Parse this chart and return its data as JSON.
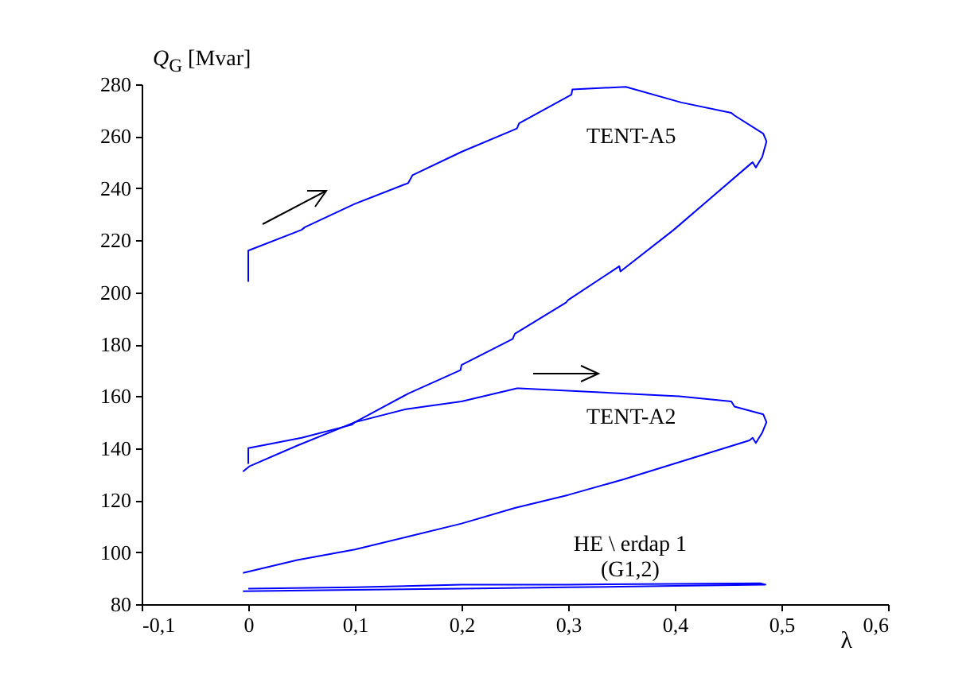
{
  "chart_data": {
    "type": "line",
    "ylabel": "Q$_{G}$ [Mvar]",
    "xlabel": "λ",
    "xlim": [
      -0.1,
      0.6
    ],
    "xticks": [
      {
        "value": -0.1,
        "label": "-0,1"
      },
      0,
      {
        "value": 0.1,
        "label": "0,1"
      },
      {
        "value": 0.2,
        "label": "0,2"
      },
      {
        "value": 0.3,
        "label": "0,3"
      },
      {
        "value": 0.4,
        "label": "0,4"
      },
      {
        "value": 0.5,
        "label": "0,5"
      },
      {
        "value": 0.6,
        "label": "0,6"
      }
    ],
    "ylim": [
      80,
      280
    ],
    "yticks": [
      80,
      100,
      120,
      140,
      160,
      180,
      200,
      220,
      240,
      260,
      280
    ],
    "grid": false,
    "legend": false,
    "series": [
      {
        "name": "TENT-A5",
        "color": "#0000ff",
        "x": [
          0,
          0,
          0.05,
          0.053,
          0.1,
          0.15,
          0.154,
          0.2,
          0.252,
          0.254,
          0.303,
          0.304,
          0.354,
          0.406,
          0.453,
          0.456,
          0.483,
          0.486,
          0.482,
          0.476,
          0.473,
          0.47,
          0.399,
          0.349,
          0.348,
          0.3,
          0.298,
          0.25,
          0.248,
          0.2,
          0.199,
          0.15,
          0.1,
          0.046,
          0.001,
          -0.005
        ],
        "values": [
          204,
          216,
          224,
          225,
          234,
          242,
          245,
          254,
          263,
          265,
          276,
          278,
          279,
          273,
          269,
          268,
          261,
          258,
          252,
          248,
          250,
          249,
          224,
          208,
          210,
          197,
          196,
          184,
          182,
          172,
          170,
          161,
          150,
          141,
          133,
          131
        ]
      },
      {
        "name": "TENT-A2",
        "color": "#0000ff",
        "x": [
          0,
          0,
          0.05,
          0.097,
          0.1,
          0.148,
          0.2,
          0.252,
          0.254,
          0.404,
          0.453,
          0.456,
          0.483,
          0.486,
          0.482,
          0.476,
          0.473,
          0.47,
          0.399,
          0.352,
          0.3,
          0.25,
          0.2,
          0.15,
          0.1,
          0.046,
          -0.005
        ],
        "values": [
          134,
          140,
          144,
          149,
          150,
          155,
          158,
          163,
          163,
          160,
          158,
          156,
          153,
          150,
          146,
          142,
          144,
          143,
          134,
          128,
          122,
          117,
          111,
          106,
          101,
          97,
          92
        ]
      },
      {
        "name": "HE \\ erdap 1\n(G1,2)",
        "color": "#0000ff",
        "x": [
          0,
          0.1,
          0.2,
          0.3,
          0.4,
          0.48,
          0.485,
          0.4,
          0.3,
          0.2,
          0.1,
          -0.005
        ],
        "values": [
          86,
          86.5,
          87.5,
          87.5,
          87.8,
          88,
          87.5,
          87,
          86.5,
          86,
          85.5,
          85
        ]
      }
    ]
  }
}
